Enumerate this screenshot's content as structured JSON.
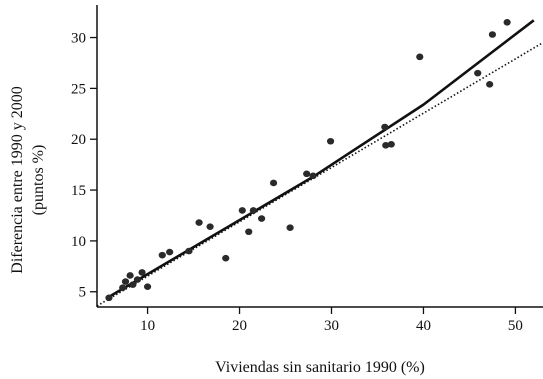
{
  "chart_data": {
    "type": "scatter",
    "xlabel": "Viviendas sin sanitario 1990 (%)",
    "ylabel_line1": "Diferencia entre 1990 y 2000",
    "ylabel_line2": "(puntos %)",
    "xlim": [
      4.5,
      53
    ],
    "ylim": [
      3.5,
      33.2
    ],
    "xticks": [
      10,
      20,
      30,
      40,
      50
    ],
    "yticks": [
      5,
      10,
      15,
      20,
      25,
      30
    ],
    "grid": false,
    "legend": "none",
    "points": [
      {
        "x": 5.8,
        "y": 4.4
      },
      {
        "x": 7.3,
        "y": 5.4
      },
      {
        "x": 7.6,
        "y": 6.0
      },
      {
        "x": 8.1,
        "y": 6.6
      },
      {
        "x": 8.4,
        "y": 5.7
      },
      {
        "x": 8.9,
        "y": 6.2
      },
      {
        "x": 9.4,
        "y": 6.9
      },
      {
        "x": 10.0,
        "y": 5.5
      },
      {
        "x": 11.6,
        "y": 8.6
      },
      {
        "x": 12.4,
        "y": 8.9
      },
      {
        "x": 14.5,
        "y": 9.0
      },
      {
        "x": 15.6,
        "y": 11.8
      },
      {
        "x": 16.8,
        "y": 11.4
      },
      {
        "x": 18.5,
        "y": 8.3
      },
      {
        "x": 20.3,
        "y": 13.0
      },
      {
        "x": 21.0,
        "y": 10.9
      },
      {
        "x": 21.5,
        "y": 13.0
      },
      {
        "x": 22.4,
        "y": 12.2
      },
      {
        "x": 23.7,
        "y": 15.7
      },
      {
        "x": 25.5,
        "y": 11.3
      },
      {
        "x": 27.3,
        "y": 16.6
      },
      {
        "x": 28.0,
        "y": 16.4
      },
      {
        "x": 29.9,
        "y": 19.8
      },
      {
        "x": 35.8,
        "y": 21.2
      },
      {
        "x": 35.9,
        "y": 19.4
      },
      {
        "x": 36.5,
        "y": 19.5
      },
      {
        "x": 39.6,
        "y": 28.1
      },
      {
        "x": 45.9,
        "y": 26.5
      },
      {
        "x": 47.2,
        "y": 25.4
      },
      {
        "x": 47.5,
        "y": 30.3
      },
      {
        "x": 49.1,
        "y": 31.5
      }
    ],
    "fits": [
      {
        "style": "solid",
        "points": [
          [
            6.0,
            4.6
          ],
          [
            28.0,
            16.3
          ],
          [
            40.0,
            23.4
          ],
          [
            52.0,
            31.7
          ]
        ]
      },
      {
        "style": "dotted",
        "points": [
          [
            4.5,
            3.6
          ],
          [
            53.0,
            29.5
          ]
        ]
      }
    ],
    "colors": {
      "points": "#2a2a2a",
      "lines": "#111111",
      "axes": "#111111"
    }
  }
}
